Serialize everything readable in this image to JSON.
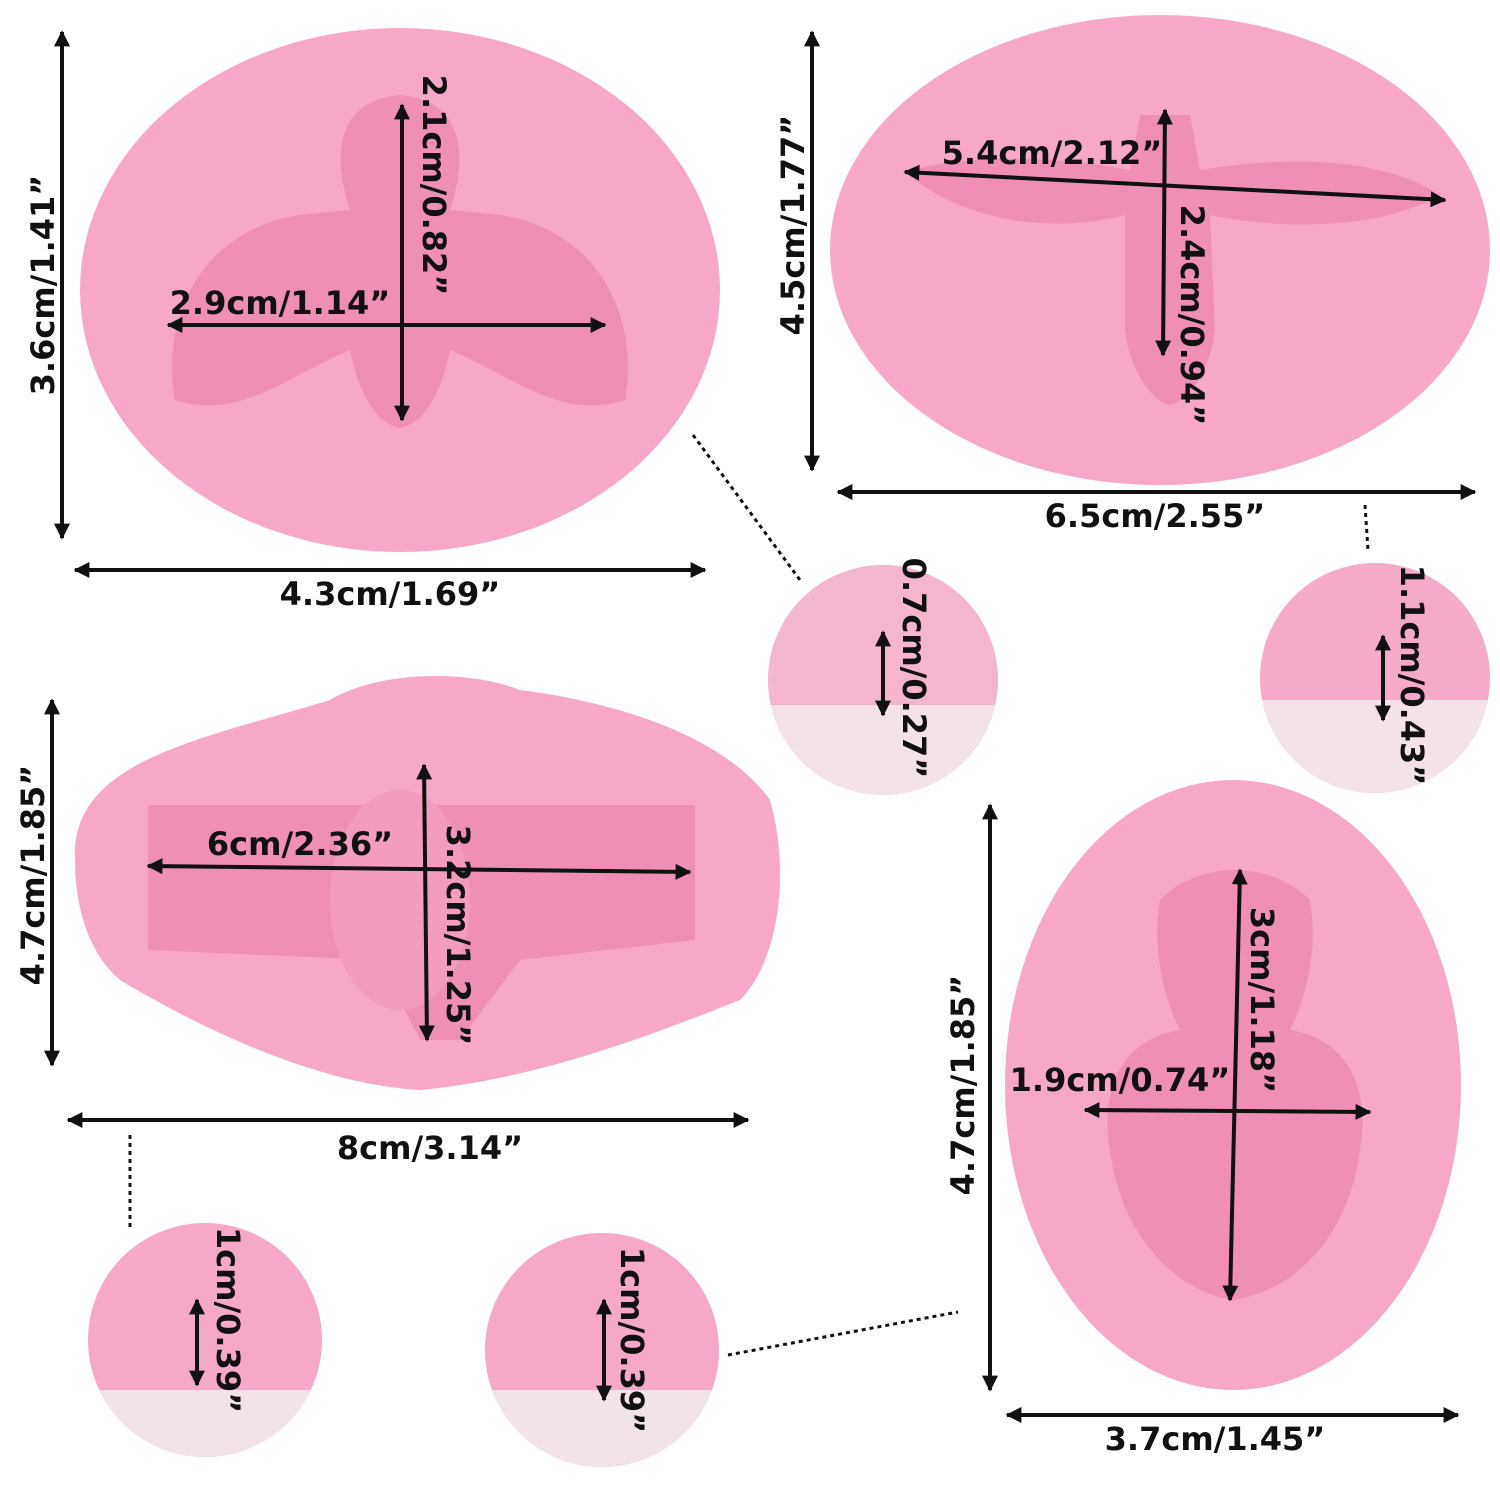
{
  "molds": [
    {
      "height": "3.6cm/1.41”",
      "width": "4.3cm/1.69”",
      "inner_width": "2.9cm/1.14”",
      "inner_height": "2.1cm/0.82”",
      "depth": "0.7cm/0.27”"
    },
    {
      "height": "4.5cm/1.77”",
      "width": "6.5cm/2.55”",
      "inner_width": "5.4cm/2.12”",
      "inner_height": "2.4cm/0.94”",
      "depth": "1.1cm/0.43”"
    },
    {
      "height": "4.7cm/1.85”",
      "width": "8cm/3.14”",
      "inner_width": "6cm/2.36”",
      "inner_height": "3.2cm/1.25”",
      "depth": "1cm/0.39”"
    },
    {
      "height": "4.7cm/1.85”",
      "width": "3.7cm/1.45”",
      "inner_width": "1.9cm/0.74”",
      "inner_height": "3cm/1.18”",
      "depth": "1cm/0.39”"
    }
  ]
}
